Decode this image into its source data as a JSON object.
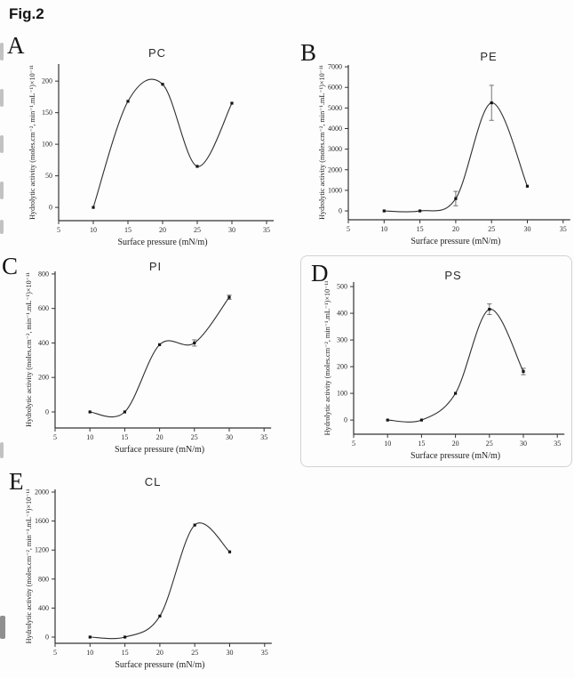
{
  "figure_label": "Fig.2",
  "line_color": "#2f2f2f",
  "axes_common": {
    "xlabel": "Surface pressure (mN/m)",
    "ylabel": "Hydrolytic activity (moles.cm⁻², min⁻¹.mL⁻¹)×10⁻¹¹",
    "xticks": [
      5,
      10,
      15,
      20,
      25,
      30,
      35
    ],
    "xlim": [
      5,
      35
    ]
  },
  "chart_data": [
    {
      "panel": "A",
      "type": "line",
      "title": "PC",
      "x": [
        10,
        15,
        20,
        25,
        30
      ],
      "y": [
        0,
        168,
        195,
        65,
        165
      ],
      "yerr": [
        0,
        0,
        0,
        0,
        0
      ],
      "yticks": [
        0,
        50,
        100,
        150,
        200
      ],
      "ylim": [
        -21,
        227
      ]
    },
    {
      "panel": "B",
      "type": "line",
      "title": "PE",
      "x": [
        10,
        15,
        20,
        25,
        30
      ],
      "y": [
        0,
        0,
        600,
        5250,
        1200
      ],
      "yerr": [
        0,
        0,
        350,
        850,
        0
      ],
      "yticks": [
        0,
        1000,
        2000,
        3000,
        4000,
        5000,
        6000,
        7000
      ],
      "ylim": [
        -430,
        7090
      ]
    },
    {
      "panel": "C",
      "type": "line",
      "title": "PI",
      "x": [
        10,
        15,
        20,
        25,
        30
      ],
      "y": [
        0,
        0,
        390,
        400,
        665
      ],
      "yerr": [
        0,
        0,
        0,
        18,
        12
      ],
      "yticks": [
        0,
        200,
        400,
        600,
        800
      ],
      "ylim": [
        -93,
        815
      ]
    },
    {
      "panel": "D",
      "type": "line",
      "title": "PS",
      "x": [
        10,
        15,
        20,
        25,
        30
      ],
      "y": [
        0,
        0,
        100,
        415,
        182
      ],
      "yerr": [
        0,
        0,
        0,
        20,
        12
      ],
      "yticks": [
        0,
        100,
        200,
        300,
        400,
        500
      ],
      "ylim": [
        -53,
        517
      ]
    },
    {
      "panel": "E",
      "type": "line",
      "title": "CL",
      "x": [
        10,
        15,
        20,
        25,
        30
      ],
      "y": [
        0,
        0,
        290,
        1545,
        1175
      ],
      "yerr": [
        0,
        0,
        0,
        0,
        0
      ],
      "yticks": [
        0,
        400,
        800,
        1200,
        1600,
        2000
      ],
      "ylim": [
        -86,
        2037
      ]
    }
  ]
}
